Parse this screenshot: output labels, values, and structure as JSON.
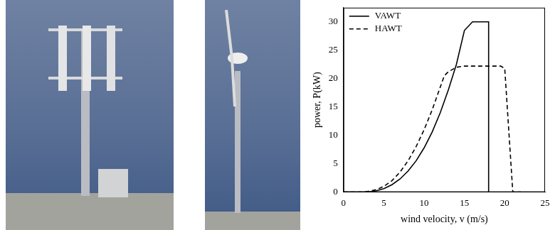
{
  "chart_data": {
    "type": "line",
    "x_label": "wind velocity, v (m/s)",
    "y_label": "power, P(kW)",
    "xlim": [
      0,
      25
    ],
    "xticks": [
      0,
      5,
      10,
      15,
      20,
      25
    ],
    "ylim": [
      0,
      32.5
    ],
    "yticks": [
      0,
      5,
      10,
      15,
      20,
      25,
      30
    ],
    "grid": false,
    "legend": "upper left",
    "series": [
      {
        "name": "VAWT",
        "color": "#000000",
        "line_style": "solid",
        "x": [
          0,
          3,
          4,
          5,
          6,
          7,
          8,
          9,
          10,
          11,
          12,
          13,
          14,
          15,
          16,
          17,
          18,
          18
        ],
        "values": [
          0,
          0,
          0.2,
          0.6,
          1.3,
          2.3,
          3.7,
          5.5,
          7.8,
          10.6,
          14,
          18,
          22.5,
          28.5,
          30,
          30,
          30,
          0
        ]
      },
      {
        "name": "HAWT",
        "color": "#000000",
        "line_style": "dashed",
        "x": [
          0,
          2.5,
          4,
          5,
          6,
          7,
          8,
          9,
          10,
          11,
          12,
          12.5,
          13,
          14,
          15,
          16,
          18,
          19.5,
          20,
          21,
          22
        ],
        "values": [
          0,
          0,
          0.4,
          1,
          2,
          3.5,
          5.5,
          8,
          11,
          14.5,
          18.5,
          20.5,
          21.2,
          22,
          22.2,
          22.2,
          22.2,
          22.2,
          21.8,
          0,
          0
        ]
      }
    ]
  }
}
